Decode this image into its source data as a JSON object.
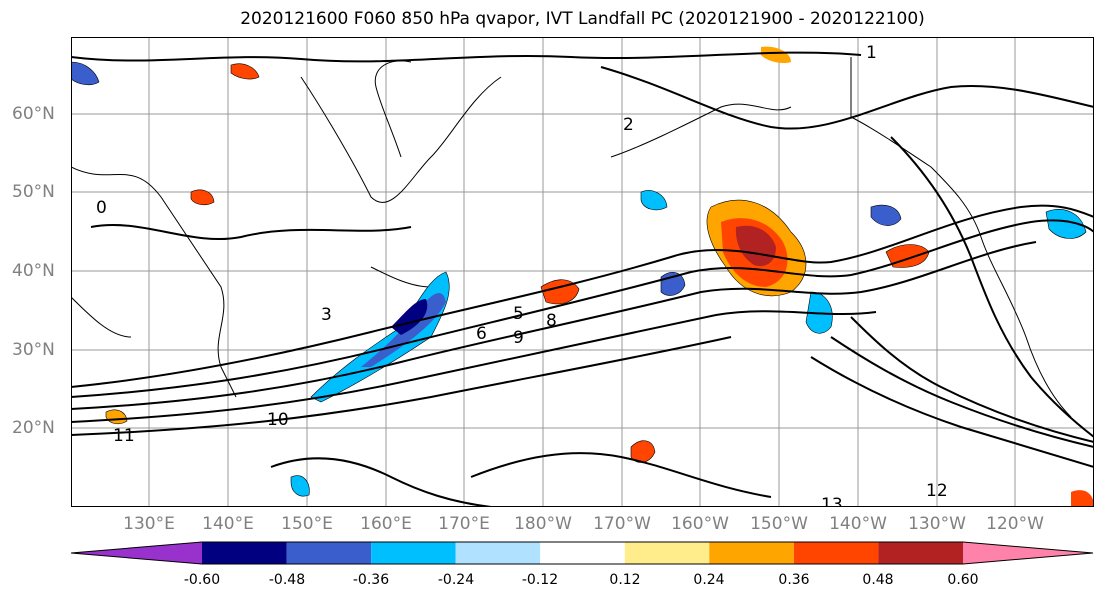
{
  "title": "2020121600 F060 850 hPa qvapor, IVT Landfall PC (2020121900 - 2020122100)",
  "map": {
    "lat_labels": [
      "60°N",
      "50°N",
      "40°N",
      "30°N",
      "20°N"
    ],
    "lon_labels": [
      "130°E",
      "140°E",
      "150°E",
      "160°E",
      "170°E",
      "180°W",
      "170°W",
      "160°W",
      "150°W",
      "140°W",
      "130°W",
      "120°W"
    ],
    "contour_labels": [
      "0",
      "1",
      "2",
      "3",
      "5",
      "6",
      "8",
      "9",
      "10",
      "11",
      "12",
      "13"
    ]
  },
  "colorbar": {
    "tick_labels": [
      "-0.60",
      "-0.48",
      "-0.36",
      "-0.24",
      "-0.12",
      "0.12",
      "0.24",
      "0.36",
      "0.48",
      "0.60"
    ],
    "colors": [
      "#9932CC",
      "#000080",
      "#3A5FCD",
      "#00BFFF",
      "#B0E2FF",
      "#FFFFFF",
      "#FFEC8B",
      "#FFA500",
      "#FF4500",
      "#B22222",
      "#FF82AB"
    ]
  }
}
